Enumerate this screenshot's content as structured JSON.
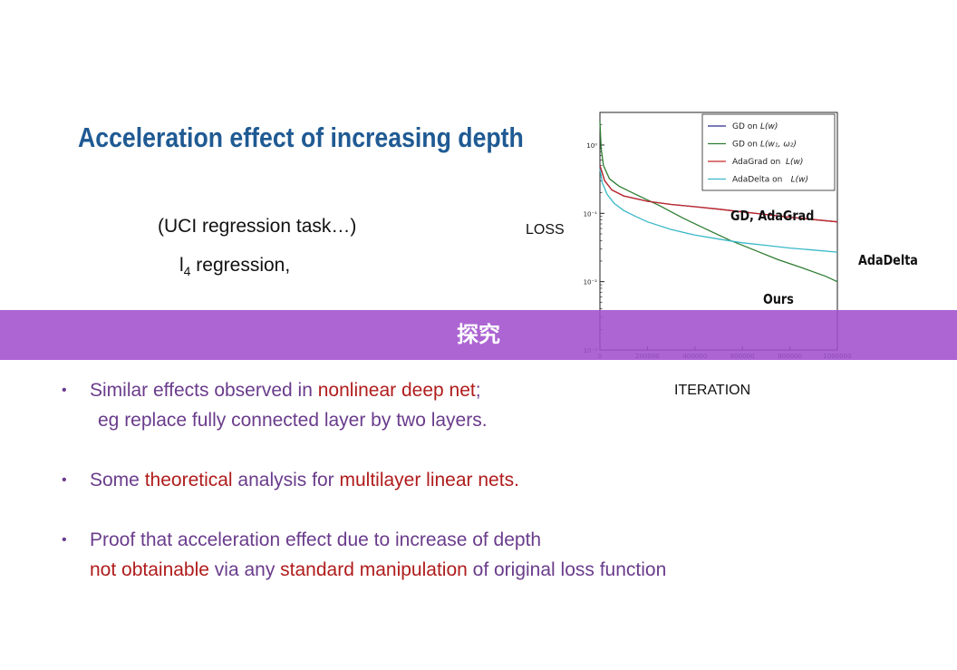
{
  "slide": {
    "title": "Acceleration effect of increasing depth",
    "subtitle_line1": "(UCI regression task…)",
    "subtitle_line2_base": "l",
    "subtitle_line2_sub": "4",
    "subtitle_line2_rest": " regression,",
    "y_axis_caption": "LOSS",
    "x_axis_caption": "ITERATION",
    "annotation_gd_adagrad": "GD, AdaGrad",
    "annotation_adadelta": "AdaDelta",
    "annotation_ours": "Ours",
    "banner_text": "探究",
    "banner_color": "#a050cd"
  },
  "bullets": [
    {
      "line1": [
        {
          "text": "Similar effects observed in ",
          "emph": false
        },
        {
          "text": "nonlinear deep net",
          "emph": true
        },
        {
          "text": ";",
          "emph": false
        }
      ],
      "line2": [
        {
          "text": "eg replace fully connected layer by two layers.",
          "emph": false
        }
      ]
    },
    {
      "line1": [
        {
          "text": "Some ",
          "emph": false
        },
        {
          "text": "theoretical",
          "emph": true
        },
        {
          "text": " analysis for ",
          "emph": false
        },
        {
          "text": "multilayer linear nets.",
          "emph": true
        }
      ]
    },
    {
      "line1": [
        {
          "text": "Proof that acceleration effect due to increase of depth",
          "emph": false
        }
      ],
      "line2": [
        {
          "text": "not obtainable",
          "emph": true
        },
        {
          "text": " via any ",
          "emph": false
        },
        {
          "text": "standard manipulation",
          "emph": true
        },
        {
          "text": " of original loss function",
          "emph": false
        }
      ]
    }
  ],
  "colors": {
    "title": "#1f5a93",
    "body_text": "#6a3c8c",
    "emphasis": "#b01c1c"
  },
  "chart_data": {
    "type": "line",
    "y_scale": "log",
    "xlim": [
      0,
      1000000
    ],
    "ylim": [
      0.001,
      3
    ],
    "x_ticks": [
      0,
      200000,
      400000,
      600000,
      800000,
      1000000
    ],
    "x_tick_labels": [
      "0",
      "200000",
      "400000",
      "600000",
      "800000",
      "1000000"
    ],
    "y_ticks": [
      1,
      0.1,
      0.01,
      0.001
    ],
    "y_tick_labels": [
      "10⁰",
      "10⁻¹",
      "10⁻²",
      "10⁻³"
    ],
    "legend_position": "top-right",
    "series": [
      {
        "name": "GD on L(w)",
        "color": "#2b2a8c",
        "x": [
          0,
          20000,
          50000,
          100000,
          200000,
          300000,
          400000,
          500000,
          600000,
          700000,
          800000,
          900000,
          1000000
        ],
        "y": [
          0.5,
          0.3,
          0.22,
          0.18,
          0.15,
          0.135,
          0.125,
          0.115,
          0.105,
          0.096,
          0.088,
          0.081,
          0.075
        ]
      },
      {
        "name": "GD on L(w1,ω2)",
        "color": "#2e7d32",
        "x": [
          0,
          5000,
          15000,
          40000,
          80000,
          150000,
          250000,
          350000,
          450000,
          550000,
          650000,
          750000,
          850000,
          950000,
          1000000
        ],
        "y": [
          2.2,
          0.9,
          0.5,
          0.32,
          0.25,
          0.19,
          0.13,
          0.085,
          0.058,
          0.04,
          0.029,
          0.021,
          0.016,
          0.012,
          0.01
        ]
      },
      {
        "name": "AdaGrad on L(w)",
        "color": "#c62828",
        "x": [
          0,
          20000,
          50000,
          100000,
          200000,
          300000,
          400000,
          500000,
          600000,
          700000,
          800000,
          900000,
          1000000
        ],
        "y": [
          0.5,
          0.3,
          0.22,
          0.18,
          0.15,
          0.135,
          0.125,
          0.115,
          0.105,
          0.096,
          0.088,
          0.081,
          0.075
        ]
      },
      {
        "name": "AdaDelta on L(w)",
        "color": "#3ab8c8",
        "x": [
          0,
          10000,
          30000,
          60000,
          100000,
          150000,
          200000,
          300000,
          400000,
          500000,
          600000,
          700000,
          800000,
          900000,
          1000000
        ],
        "y": [
          0.45,
          0.28,
          0.19,
          0.14,
          0.11,
          0.09,
          0.075,
          0.058,
          0.048,
          0.042,
          0.037,
          0.034,
          0.031,
          0.029,
          0.027
        ]
      }
    ],
    "legend_labels": [
      "GD on",
      "GD on",
      "AdaGrad on",
      "AdaDelta on"
    ],
    "legend_math": [
      "L(w)",
      "L(w₁, ω₂)",
      "L(w)",
      "L(w)"
    ]
  }
}
